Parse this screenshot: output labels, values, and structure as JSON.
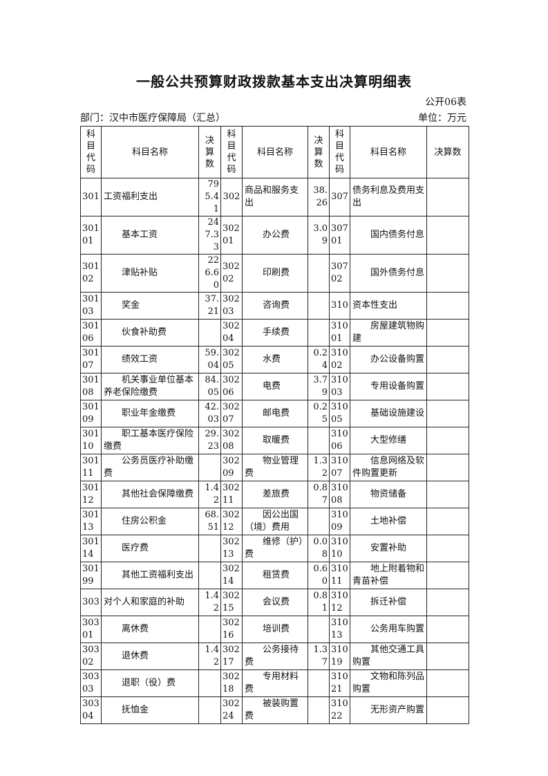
{
  "title": "一般公共预算财政拨款基本支出决算明细表",
  "form_no": "公开06表",
  "department": "部门：汉中市医疗保障局（汇总）",
  "unit": "单位：万元",
  "headers": [
    "科目代码",
    "科目名称",
    "决算数",
    "科目代码",
    "科目名称",
    "决算数",
    "科目代码",
    "科目名称",
    "决算数"
  ],
  "rows": [
    [
      {
        "c": "301",
        "n": "工资福利支出",
        "v": "795.41",
        "s": 0
      },
      {
        "c": "302",
        "n": "商品和服务支出",
        "v": "38.26",
        "s": 0
      },
      {
        "c": "307",
        "n": "债务利息及费用支出",
        "v": "",
        "s": 0
      }
    ],
    [
      {
        "c": "30101",
        "n": "基本工资",
        "v": "247.33",
        "s": 1
      },
      {
        "c": "30201",
        "n": "办公费",
        "v": "3.09",
        "s": 1
      },
      {
        "c": "30701",
        "n": "国内债务付息",
        "v": "",
        "s": 1
      }
    ],
    [
      {
        "c": "30102",
        "n": "津贴补贴",
        "v": "226.60",
        "s": 1
      },
      {
        "c": "30202",
        "n": "印刷费",
        "v": "",
        "s": 1
      },
      {
        "c": "30702",
        "n": "国外债务付息",
        "v": "",
        "s": 1
      }
    ],
    [
      {
        "c": "30103",
        "n": "奖金",
        "v": "37.21",
        "s": 1
      },
      {
        "c": "30203",
        "n": "咨询费",
        "v": "",
        "s": 1
      },
      {
        "c": "310",
        "n": "资本性支出",
        "v": "",
        "s": 0
      }
    ],
    [
      {
        "c": "30106",
        "n": "伙食补助费",
        "v": "",
        "s": 1
      },
      {
        "c": "30204",
        "n": "手续费",
        "v": "",
        "s": 1
      },
      {
        "c": "31001",
        "n": "房屋建筑物购建",
        "v": "",
        "s": 1
      }
    ],
    [
      {
        "c": "30107",
        "n": "绩效工资",
        "v": "59.04",
        "s": 1
      },
      {
        "c": "30205",
        "n": "水费",
        "v": "0.24",
        "s": 1
      },
      {
        "c": "31002",
        "n": "办公设备购置",
        "v": "",
        "s": 1
      }
    ],
    [
      {
        "c": "30108",
        "n": "机关事业单位基本养老保险缴费",
        "v": "84.05",
        "s": 1
      },
      {
        "c": "30206",
        "n": "电费",
        "v": "3.79",
        "s": 1
      },
      {
        "c": "31003",
        "n": "专用设备购置",
        "v": "",
        "s": 1
      }
    ],
    [
      {
        "c": "30109",
        "n": "职业年金缴费",
        "v": "42.03",
        "s": 1
      },
      {
        "c": "30207",
        "n": "邮电费",
        "v": "0.25",
        "s": 1
      },
      {
        "c": "31005",
        "n": "基础设施建设",
        "v": "",
        "s": 1
      }
    ],
    [
      {
        "c": "30110",
        "n": "职工基本医疗保险缴费",
        "v": "29.23",
        "s": 1
      },
      {
        "c": "30208",
        "n": "取暖费",
        "v": "",
        "s": 1
      },
      {
        "c": "31006",
        "n": "大型修缮",
        "v": "",
        "s": 1
      }
    ],
    [
      {
        "c": "30111",
        "n": "公务员医疗补助缴费",
        "v": "",
        "s": 1
      },
      {
        "c": "30209",
        "n": "物业管理费",
        "v": "1.32",
        "s": 1
      },
      {
        "c": "31007",
        "n": "信息网络及软件购置更新",
        "v": "",
        "s": 1
      }
    ],
    [
      {
        "c": "30112",
        "n": "其他社会保障缴费",
        "v": "1.42",
        "s": 1
      },
      {
        "c": "30211",
        "n": "差旅费",
        "v": "0.87",
        "s": 1
      },
      {
        "c": "31008",
        "n": "物资储备",
        "v": "",
        "s": 1
      }
    ],
    [
      {
        "c": "30113",
        "n": "住房公积金",
        "v": "68.51",
        "s": 1
      },
      {
        "c": "30212",
        "n": "因公出国（境）费用",
        "v": "",
        "s": 1
      },
      {
        "c": "31009",
        "n": "土地补偿",
        "v": "",
        "s": 1
      }
    ],
    [
      {
        "c": "30114",
        "n": "医疗费",
        "v": "",
        "s": 1
      },
      {
        "c": "30213",
        "n": "维修（护）费",
        "v": "0.08",
        "s": 1
      },
      {
        "c": "31010",
        "n": "安置补助",
        "v": "",
        "s": 1
      }
    ],
    [
      {
        "c": "30199",
        "n": "其他工资福利支出",
        "v": "",
        "s": 1
      },
      {
        "c": "30214",
        "n": "租赁费",
        "v": "0.60",
        "s": 1
      },
      {
        "c": "31011",
        "n": "地上附着物和青苗补偿",
        "v": "",
        "s": 1
      }
    ],
    [
      {
        "c": "303",
        "n": "对个人和家庭的补助",
        "v": "1.42",
        "s": 0
      },
      {
        "c": "30215",
        "n": "会议费",
        "v": "0.81",
        "s": 1
      },
      {
        "c": "31012",
        "n": "拆迁补偿",
        "v": "",
        "s": 1
      }
    ],
    [
      {
        "c": "30301",
        "n": "离休费",
        "v": "",
        "s": 1
      },
      {
        "c": "30216",
        "n": "培训费",
        "v": "",
        "s": 1
      },
      {
        "c": "31013",
        "n": "公务用车购置",
        "v": "",
        "s": 1
      }
    ],
    [
      {
        "c": "30302",
        "n": "退休费",
        "v": "1.42",
        "s": 1
      },
      {
        "c": "30217",
        "n": "公务接待费",
        "v": "1.37",
        "s": 1
      },
      {
        "c": "31019",
        "n": "其他交通工具购置",
        "v": "",
        "s": 1
      }
    ],
    [
      {
        "c": "30303",
        "n": "退职（役）费",
        "v": "",
        "s": 1
      },
      {
        "c": "30218",
        "n": "专用材料费",
        "v": "",
        "s": 1
      },
      {
        "c": "31021",
        "n": "文物和陈列品购置",
        "v": "",
        "s": 1
      }
    ],
    [
      {
        "c": "30304",
        "n": "抚恤金",
        "v": "",
        "s": 1
      },
      {
        "c": "30224",
        "n": "被装购置费",
        "v": "",
        "s": 1
      },
      {
        "c": "31022",
        "n": "无形资产购置",
        "v": "",
        "s": 1
      }
    ]
  ]
}
